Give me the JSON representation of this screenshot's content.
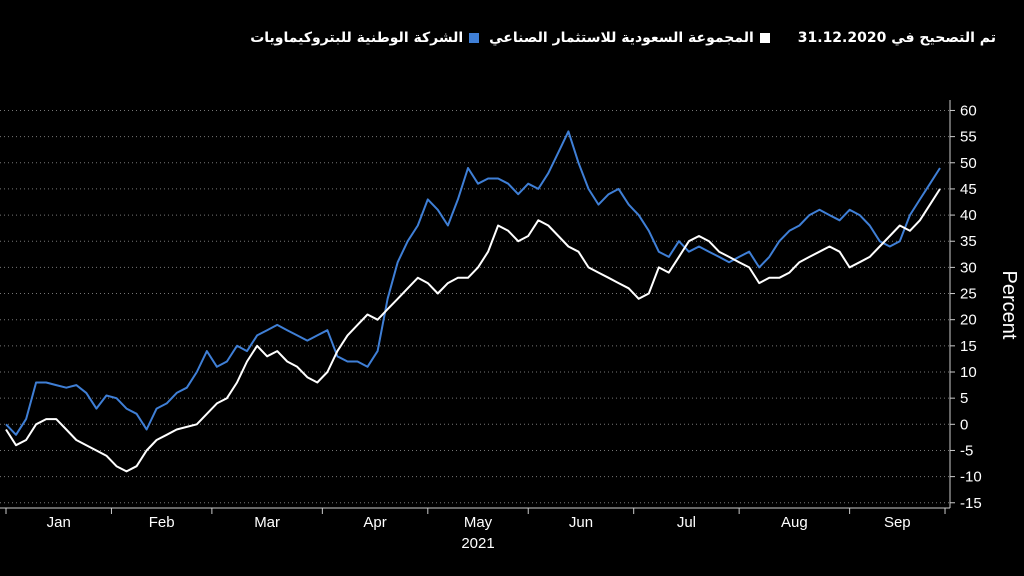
{
  "header": {
    "title": "تم التصحيح في 31.12.2020"
  },
  "colors": {
    "background": "#000000",
    "series_blue": "#3f7fd6",
    "series_white": "#ffffff",
    "axis": "#cccccc",
    "grid": "#777777"
  },
  "chart_data": {
    "type": "line",
    "title": "",
    "xlabel": "",
    "ylabel": "Percent",
    "year_label": "2021",
    "x_tick_labels": [
      "Jan",
      "Feb",
      "Mar",
      "Apr",
      "May",
      "Jun",
      "Jul",
      "Aug",
      "Sep"
    ],
    "y_tick_labels": [
      "60",
      "55",
      "50",
      "45",
      "40",
      "35",
      "30",
      "25",
      "20",
      "15",
      "10",
      "5",
      "0",
      "-5",
      "-10",
      "-15"
    ],
    "ylim": [
      -16,
      62
    ],
    "grid": "horizontal-dashed",
    "legend_position": "top-right",
    "x_unit": "trading days since 31.12.2020",
    "series": [
      {
        "name": "الشركة الوطنية للبتروكيماويات",
        "color": "#3f7fd6",
        "x": [
          0,
          2,
          4,
          6,
          8,
          10,
          12,
          14,
          16,
          18,
          20,
          22,
          24,
          26,
          28,
          30,
          32,
          34,
          36,
          38,
          40,
          42,
          44,
          46,
          48,
          50,
          52,
          54,
          56,
          58,
          60,
          62,
          64,
          66,
          68,
          70,
          72,
          74,
          76,
          78,
          80,
          82,
          84,
          86,
          88,
          90,
          92,
          94,
          96,
          98,
          100,
          102,
          104,
          106,
          108,
          110,
          112,
          114,
          116,
          118,
          120,
          122,
          124,
          126,
          128,
          130,
          132,
          134,
          136,
          138,
          140,
          142,
          144,
          146,
          148,
          150,
          152,
          154,
          156,
          158,
          160,
          162,
          164,
          166,
          168,
          170,
          172,
          174,
          176,
          178,
          180,
          182,
          184,
          186
        ],
        "values": [
          0,
          -2,
          1,
          8,
          8,
          7.5,
          7,
          7.5,
          6,
          3,
          5.5,
          5,
          3,
          2,
          -1,
          3,
          4,
          6,
          7,
          10,
          14,
          11,
          12,
          15,
          14,
          17,
          18,
          19,
          18,
          17,
          16,
          17,
          18,
          13,
          12,
          12,
          11,
          14,
          24,
          31,
          35,
          38,
          43,
          41,
          38,
          43,
          49,
          46,
          47,
          47,
          46,
          44,
          46,
          45,
          48,
          52,
          56,
          50,
          45,
          42,
          44,
          45,
          42,
          40,
          37,
          33,
          32,
          35,
          33,
          34,
          33,
          32,
          31,
          32,
          33,
          30,
          32,
          35,
          37,
          38,
          40,
          41,
          40,
          39,
          41,
          40,
          38,
          35,
          34,
          35,
          40,
          43,
          46,
          49
        ]
      },
      {
        "name": "المجموعة السعودية للاستثمار الصناعي",
        "color": "#ffffff",
        "x": [
          0,
          2,
          4,
          6,
          8,
          10,
          12,
          14,
          16,
          18,
          20,
          22,
          24,
          26,
          28,
          30,
          32,
          34,
          36,
          38,
          40,
          42,
          44,
          46,
          48,
          50,
          52,
          54,
          56,
          58,
          60,
          62,
          64,
          66,
          68,
          70,
          72,
          74,
          76,
          78,
          80,
          82,
          84,
          86,
          88,
          90,
          92,
          94,
          96,
          98,
          100,
          102,
          104,
          106,
          108,
          110,
          112,
          114,
          116,
          118,
          120,
          122,
          124,
          126,
          128,
          130,
          132,
          134,
          136,
          138,
          140,
          142,
          144,
          146,
          148,
          150,
          152,
          154,
          156,
          158,
          160,
          162,
          164,
          166,
          168,
          170,
          172,
          174,
          176,
          178,
          180,
          182,
          184,
          186
        ],
        "values": [
          -1,
          -4,
          -3,
          0,
          1,
          1,
          -1,
          -3,
          -4,
          -5,
          -6,
          -8,
          -9,
          -8,
          -5,
          -3,
          -2,
          -1,
          -0.5,
          0,
          2,
          4,
          5,
          8,
          12,
          15,
          13,
          14,
          12,
          11,
          9,
          8,
          10,
          14,
          17,
          19,
          21,
          20,
          22,
          24,
          26,
          28,
          27,
          25,
          27,
          28,
          28,
          30,
          33,
          38,
          37,
          35,
          36,
          39,
          38,
          36,
          34,
          33,
          30,
          29,
          28,
          27,
          26,
          24,
          25,
          30,
          29,
          32,
          35,
          36,
          35,
          33,
          32,
          31,
          30,
          27,
          28,
          28,
          29,
          31,
          32,
          33,
          34,
          33,
          30,
          31,
          32,
          34,
          36,
          38,
          37,
          39,
          42,
          45
        ]
      }
    ]
  }
}
